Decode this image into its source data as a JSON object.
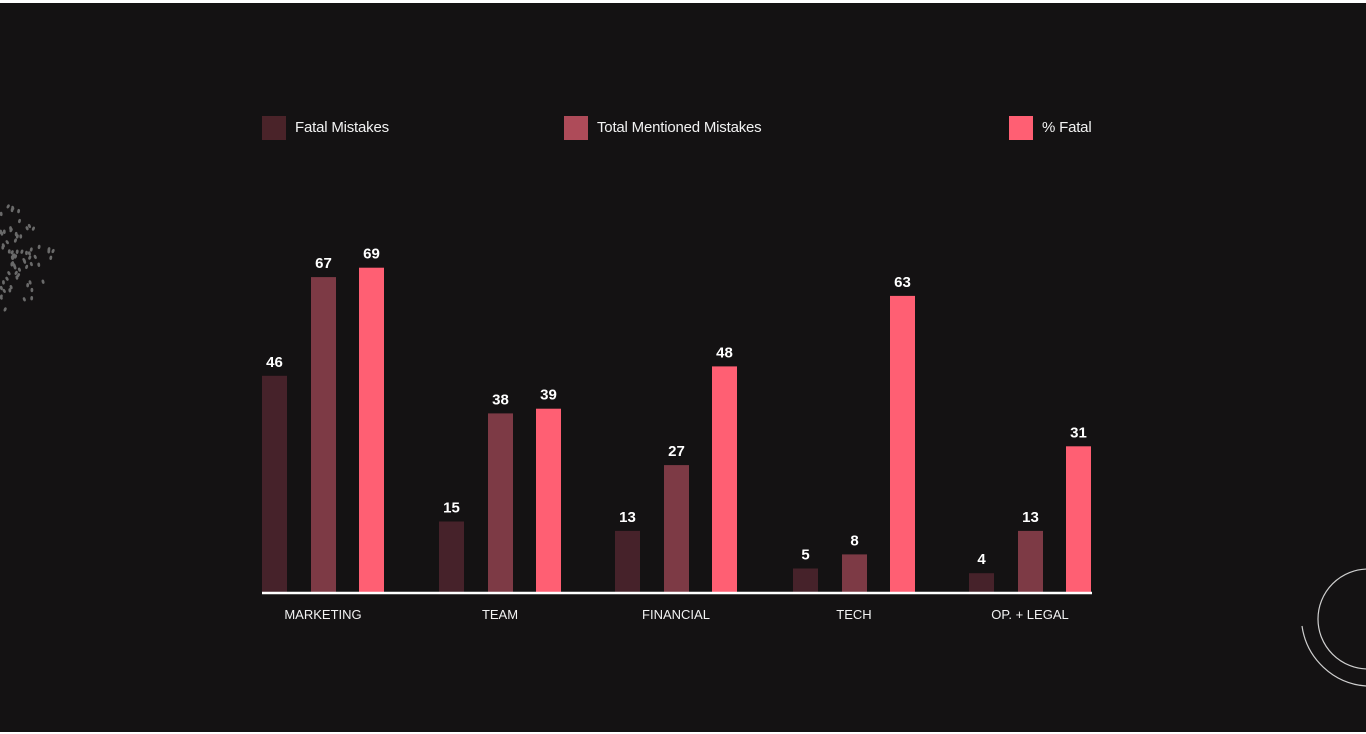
{
  "chart_data": {
    "type": "bar",
    "title": "",
    "xlabel": "",
    "ylabel": "",
    "ylim": [
      0,
      69
    ],
    "grid": false,
    "legend_position": "top",
    "categories": [
      "MARKETING",
      "TEAM",
      "FINANCIAL",
      "TECH",
      "OP. + LEGAL"
    ],
    "series": [
      {
        "name": "Fatal Mistakes",
        "color": "#46222a",
        "legend_color": "#4a2329",
        "values": [
          46,
          15,
          13,
          5,
          4
        ]
      },
      {
        "name": "Total Mentioned Mistakes",
        "color": "#7d3a45",
        "legend_color": "#ae4b59",
        "values": [
          67,
          38,
          27,
          8,
          13
        ]
      },
      {
        "name": "% Fatal",
        "color": "#ff5f73",
        "legend_color": "#ff5f73",
        "values": [
          69,
          39,
          48,
          63,
          31
        ]
      }
    ]
  },
  "colors": {
    "background": "#141213",
    "axis": "#ffffff",
    "text": "#ffffff"
  }
}
